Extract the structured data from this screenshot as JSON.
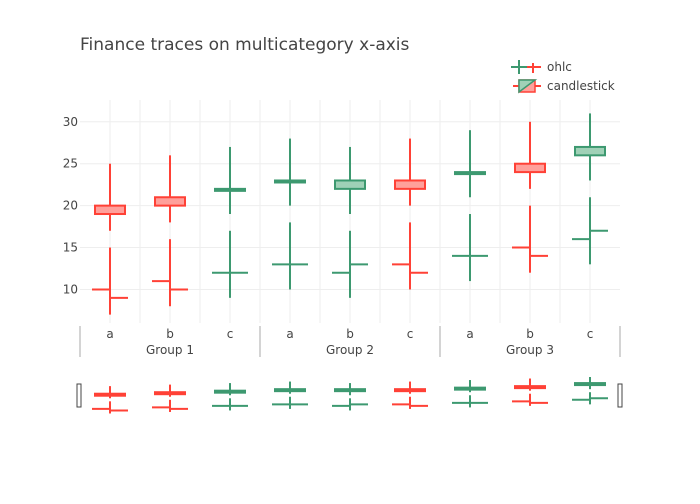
{
  "chart_data": {
    "type": "ohlc",
    "title": "Finance traces on multicategory x-axis",
    "x_categories": [
      {
        "group": "Group 1",
        "label": "a"
      },
      {
        "group": "Group 1",
        "label": "b"
      },
      {
        "group": "Group 1",
        "label": "c"
      },
      {
        "group": "Group 2",
        "label": "a"
      },
      {
        "group": "Group 2",
        "label": "b"
      },
      {
        "group": "Group 2",
        "label": "c"
      },
      {
        "group": "Group 3",
        "label": "a"
      },
      {
        "group": "Group 3",
        "label": "b"
      },
      {
        "group": "Group 3",
        "label": "c"
      }
    ],
    "groups": [
      "Group 1",
      "Group 2",
      "Group 3"
    ],
    "ylim": [
      6,
      32.6
    ],
    "yticks": [
      10,
      15,
      20,
      25,
      30
    ],
    "grid": true,
    "legend_position": "top-right",
    "rangeslider": true,
    "colors": {
      "increasing": "#3D9970",
      "decreasing": "#FF4136",
      "increasing_fill": "#A0D1B7",
      "decreasing_fill": "#FFA09B"
    },
    "series": [
      {
        "name": "ohlc",
        "kind": "ohlc",
        "open": [
          10,
          11,
          12,
          13,
          12,
          13,
          14,
          15,
          16
        ],
        "high": [
          15,
          16,
          17,
          18,
          17,
          18,
          19,
          20,
          21
        ],
        "low": [
          7,
          8,
          9,
          10,
          9,
          10,
          11,
          12,
          13
        ],
        "close": [
          9,
          10,
          12,
          13,
          13,
          12,
          14,
          14,
          17
        ]
      },
      {
        "name": "candlestick",
        "kind": "candlestick",
        "open": [
          20,
          21,
          22,
          23,
          22,
          23,
          24,
          25,
          26
        ],
        "high": [
          25,
          26,
          27,
          28,
          27,
          28,
          29,
          30,
          31
        ],
        "low": [
          17,
          18,
          19,
          20,
          19,
          20,
          21,
          22,
          23
        ],
        "close": [
          19,
          20,
          22,
          23,
          23,
          22,
          24,
          24,
          27
        ]
      }
    ]
  }
}
